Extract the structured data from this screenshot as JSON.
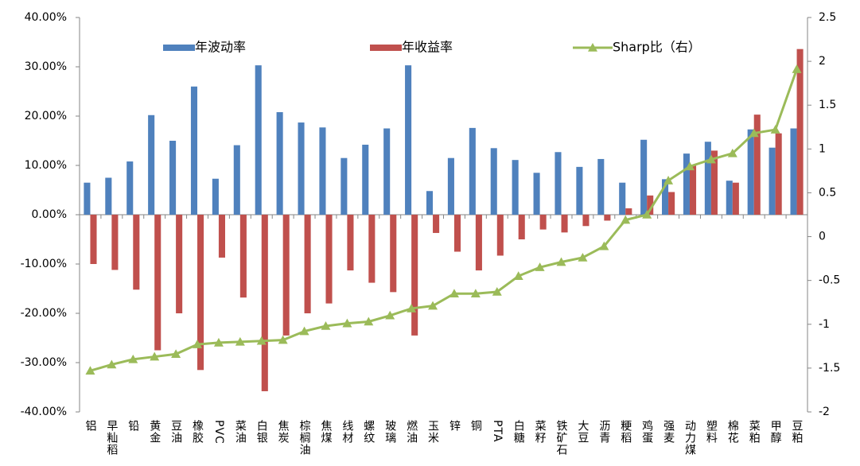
{
  "chart_data": {
    "type": "bar-line",
    "categories": [
      "铝",
      "早籼稻",
      "铅",
      "黄金",
      "豆油",
      "橡胶",
      "PVC",
      "菜油",
      "白银",
      "焦炭",
      "棕榈油",
      "焦煤",
      "线材",
      "螺纹",
      "玻璃",
      "燃油",
      "玉米",
      "锌",
      "铜",
      "PTA",
      "白糖",
      "菜籽",
      "铁矿石",
      "大豆",
      "沥青",
      "粳稻",
      "鸡蛋",
      "强麦",
      "动力煤",
      "塑料",
      "棉花",
      "菜粕",
      "甲醇",
      "豆粕"
    ],
    "series": [
      {
        "name": "年波动率",
        "type": "bar",
        "color": "#4f81bd",
        "values": [
          6.5,
          7.5,
          10.8,
          20.2,
          15,
          26,
          7.3,
          14.1,
          30.3,
          20.8,
          18.7,
          17.7,
          11.5,
          14.2,
          17.5,
          30.3,
          4.8,
          11.5,
          17.6,
          13.5,
          11.1,
          8.5,
          12.7,
          9.7,
          11.3,
          6.5,
          15.2,
          7.2,
          12.4,
          14.8,
          6.9,
          17.3,
          13.6,
          17.5
        ]
      },
      {
        "name": "年收益率",
        "type": "bar",
        "color": "#c0504d",
        "values": [
          -10,
          -11.2,
          -15.2,
          -27.5,
          -20,
          -31.5,
          -8.7,
          -16.8,
          -35.8,
          -24.5,
          -20,
          -18,
          -11.3,
          -13.8,
          -15.7,
          -24.5,
          -3.7,
          -7.5,
          -11.3,
          -8.3,
          -5,
          -3,
          -3.6,
          -2.3,
          -1.2,
          1.3,
          3.9,
          4.6,
          10,
          13,
          6.5,
          20.3,
          16.5,
          33.6
        ]
      },
      {
        "name": "Sharp比（右）",
        "type": "line",
        "axis": "y2",
        "color": "#9bbb59",
        "values": [
          -1.53,
          -1.46,
          -1.4,
          -1.37,
          -1.34,
          -1.23,
          -1.21,
          -1.2,
          -1.19,
          -1.18,
          -1.08,
          -1.02,
          -0.99,
          -0.97,
          -0.9,
          -0.82,
          -0.79,
          -0.65,
          -0.65,
          -0.63,
          -0.45,
          -0.35,
          -0.29,
          -0.24,
          -0.11,
          0.19,
          0.25,
          0.64,
          0.8,
          0.88,
          0.95,
          1.18,
          1.22,
          1.91
        ]
      }
    ],
    "ylim": [
      -40,
      40
    ],
    "yticks": [
      {
        "value": -40,
        "label": "-40.00%"
      },
      {
        "value": -30,
        "label": "-30.00%"
      },
      {
        "value": -20,
        "label": "-20.00%"
      },
      {
        "value": -10,
        "label": "-10.00%"
      },
      {
        "value": 0,
        "label": "0.00%"
      },
      {
        "value": 10,
        "label": "10.00%"
      },
      {
        "value": 20,
        "label": "20.00%"
      },
      {
        "value": 30,
        "label": "30.00%"
      },
      {
        "value": 40,
        "label": "40.00%"
      }
    ],
    "y2lim": [
      -2,
      2.5
    ],
    "y2ticks": [
      -2,
      -1.5,
      -1,
      -0.5,
      0,
      0.5,
      1,
      1.5,
      2,
      2.5
    ],
    "grid": false,
    "legend": "top"
  }
}
